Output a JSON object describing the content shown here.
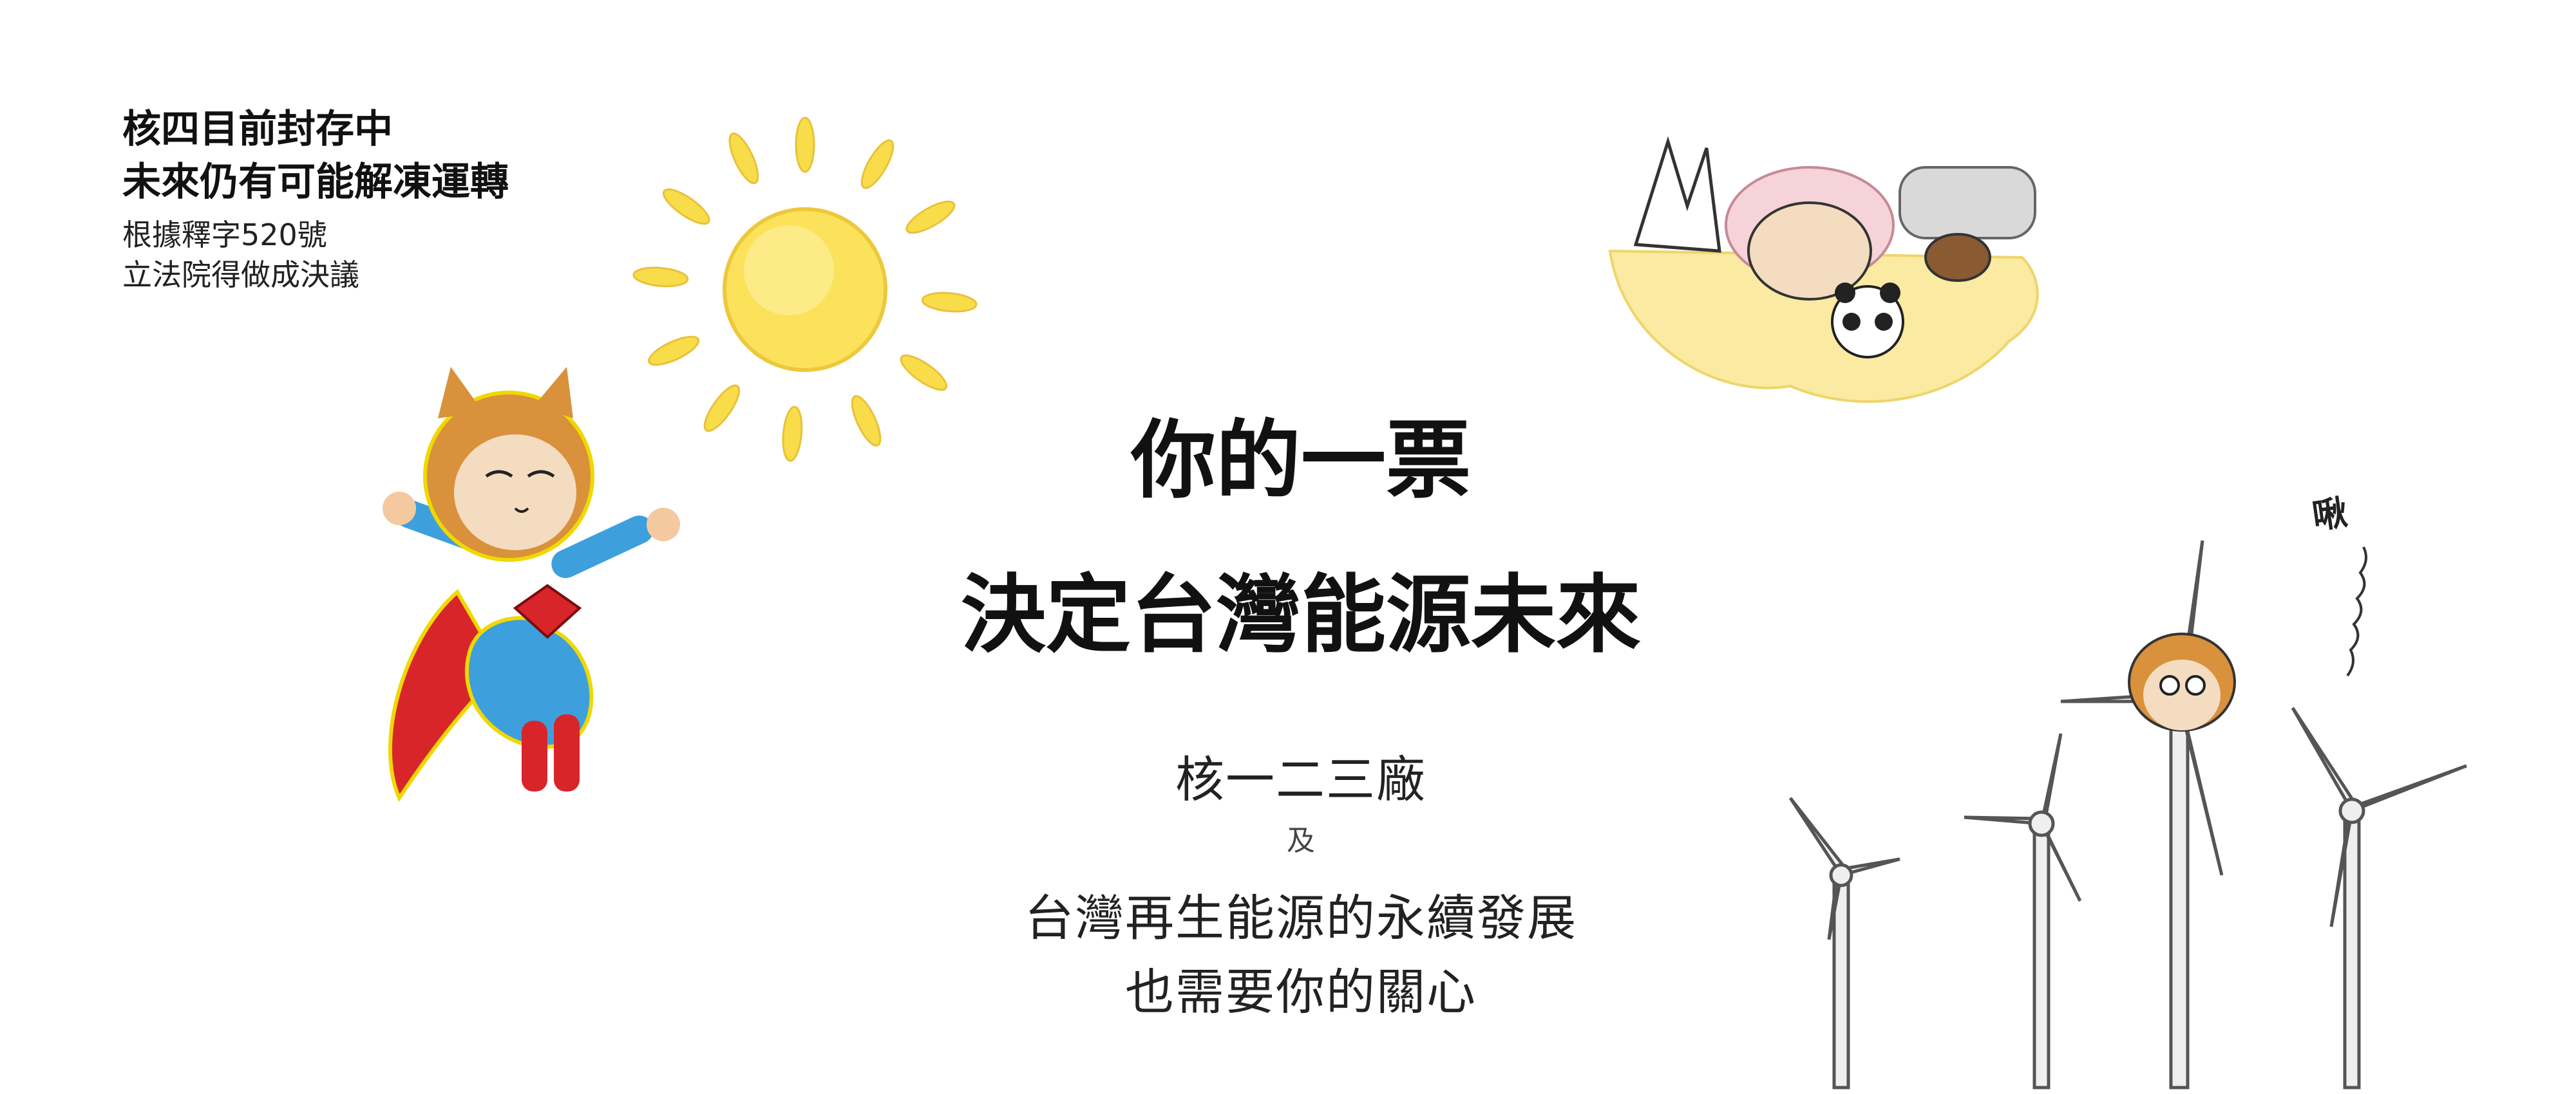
{
  "notes": {
    "line1": "核四目前封存中",
    "line2": "未來仍有可能解凍運轉",
    "line3": "根據釋字520號",
    "line4": "立法院得做成決議"
  },
  "headline": {
    "line1": "你的一票",
    "line2": "決定台灣能源未來"
  },
  "subtitle": {
    "line1": "核一二三廠",
    "connector": "及",
    "line2": "台灣再生能源的永續發展",
    "line3": "也需要你的關心"
  },
  "sound_effect": "啾",
  "colors": {
    "sun": "#f9dc4a",
    "cape": "#d8252a",
    "suit": "#3da0dd",
    "fur": "#d9913b",
    "bath": "#faeaa2",
    "turbine": "#e9e9e9"
  }
}
